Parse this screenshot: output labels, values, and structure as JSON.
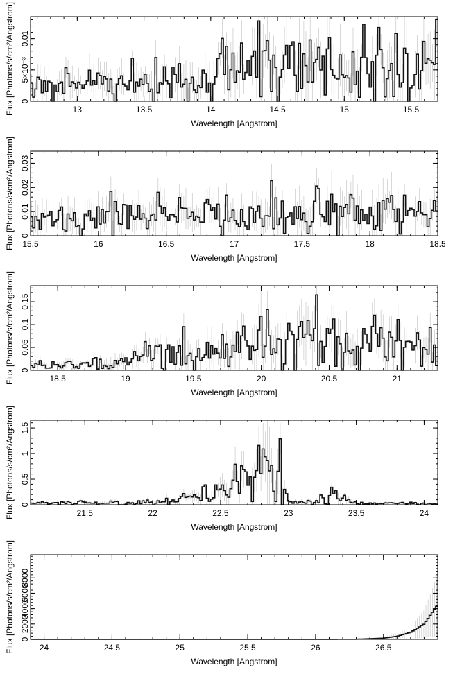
{
  "figure": {
    "colors": {
      "line": "#111111",
      "error_bars": "#bdbdbd",
      "axes": "#000000",
      "background": "#ffffff"
    }
  },
  "chart_data": [
    {
      "type": "line",
      "style": "step histogram with vertical error bars",
      "xlabel": "Wavelength [Angstrom]",
      "ylabel": "Flux [Photons/s/cm²/Angstrom]",
      "xlim": [
        12.65,
        15.7
      ],
      "ylim": [
        0,
        0.0135
      ],
      "x_ticks": [
        13,
        13.5,
        14,
        14.5,
        15,
        15.5
      ],
      "x_tick_labels": [
        "13",
        "13.5",
        "14",
        "14.5",
        "15",
        "15.5"
      ],
      "y_ticks": [
        0,
        0.005,
        0.01
      ],
      "y_tick_labels": [
        "0",
        "5×10⁻³",
        "0.01"
      ],
      "grid": false,
      "series": [
        {
          "x": [
            12.7,
            12.9,
            13.1,
            13.3,
            13.5,
            13.7,
            13.9,
            14.1,
            14.3,
            14.5,
            14.7,
            14.9,
            15.1,
            15.3,
            15.5,
            15.7
          ],
          "y": [
            0.0025,
            0.0026,
            0.0028,
            0.003,
            0.0032,
            0.0034,
            0.0036,
            0.0045,
            0.0052,
            0.0055,
            0.0062,
            0.0058,
            0.005,
            0.0045,
            0.006,
            0.0065
          ]
        }
      ]
    },
    {
      "type": "line",
      "style": "step histogram with vertical error bars",
      "xlabel": "Wavelength [Angstrom]",
      "ylabel": "Flux [Photons/s/cm²/Angstrom]",
      "xlim": [
        15.5,
        18.5
      ],
      "ylim": [
        0,
        0.035
      ],
      "x_ticks": [
        15.5,
        16,
        16.5,
        17,
        17.5,
        18,
        18.5
      ],
      "x_tick_labels": [
        "15.5",
        "16",
        "16.5",
        "17",
        "17.5",
        "18",
        "18.5"
      ],
      "y_ticks": [
        0,
        0.01,
        0.02,
        0.03
      ],
      "y_tick_labels": [
        "0",
        "0.01",
        "0.02",
        "0.03"
      ],
      "grid": false,
      "series": [
        {
          "x": [
            15.5,
            15.75,
            16.0,
            16.25,
            16.5,
            16.75,
            17.0,
            17.25,
            17.5,
            17.75,
            18.0,
            18.25,
            18.5
          ],
          "y": [
            0.007,
            0.008,
            0.0075,
            0.007,
            0.0085,
            0.009,
            0.008,
            0.0085,
            0.0095,
            0.011,
            0.012,
            0.01,
            0.009
          ]
        }
      ]
    },
    {
      "type": "line",
      "style": "step histogram with vertical error bars",
      "xlabel": "Wavelength [Angstrom]",
      "ylabel": "Flux [Photons/s/cm²/Angstrom]",
      "xlim": [
        18.3,
        21.3
      ],
      "ylim": [
        0,
        0.185
      ],
      "x_ticks": [
        18.5,
        19,
        19.5,
        20,
        20.5,
        21
      ],
      "x_tick_labels": [
        "18.5",
        "19",
        "19.5",
        "20",
        "20.5",
        "21"
      ],
      "y_ticks": [
        0,
        0.05,
        0.1,
        0.15
      ],
      "y_tick_labels": [
        "0",
        "0.05",
        "0.1",
        "0.15"
      ],
      "grid": false,
      "series": [
        {
          "x": [
            18.3,
            18.55,
            18.8,
            19.05,
            19.3,
            19.55,
            19.8,
            20.05,
            20.3,
            20.55,
            20.8,
            21.05,
            21.3
          ],
          "y": [
            0.01,
            0.011,
            0.015,
            0.025,
            0.03,
            0.04,
            0.05,
            0.07,
            0.075,
            0.06,
            0.065,
            0.045,
            0.04
          ]
        }
      ]
    },
    {
      "type": "line",
      "style": "step histogram with vertical error bars",
      "xlabel": "Wavelength [Angstrom]",
      "ylabel": "Flux [Photons/s/cm²/Angstrom]",
      "xlim": [
        21.1,
        24.1
      ],
      "ylim": [
        0,
        1.65
      ],
      "x_ticks": [
        21.5,
        22,
        22.5,
        23,
        23.5,
        24
      ],
      "x_tick_labels": [
        "21.5",
        "22",
        "22.5",
        "23",
        "23.5",
        "24"
      ],
      "y_ticks": [
        0,
        0.5,
        1,
        1.5
      ],
      "y_tick_labels": [
        "0",
        "0.5",
        "1",
        "1.5"
      ],
      "grid": false,
      "series": [
        {
          "x": [
            21.1,
            21.5,
            22.0,
            22.2,
            22.4,
            22.55,
            22.65,
            22.75,
            22.85,
            22.92,
            23.0,
            23.2,
            23.35,
            23.5,
            24.1
          ],
          "y": [
            0.03,
            0.04,
            0.05,
            0.1,
            0.15,
            0.3,
            0.5,
            0.7,
            0.9,
            0.6,
            0.05,
            0.05,
            0.15,
            0.03,
            0.03
          ]
        }
      ]
    },
    {
      "type": "line",
      "style": "step histogram with vertical error bars",
      "xlabel": "Wavelength [Angstrom]",
      "ylabel": "Flux [Photons/s/cm²/Angstrom]",
      "xlim": [
        23.9,
        26.9
      ],
      "ylim": [
        0,
        11000
      ],
      "x_ticks": [
        24,
        24.5,
        25,
        25.5,
        26,
        26.5
      ],
      "x_tick_labels": [
        "24",
        "24.5",
        "25",
        "25.5",
        "26",
        "26.5"
      ],
      "y_ticks": [
        0,
        2000,
        4000,
        6000,
        8000
      ],
      "y_tick_labels": [
        "0",
        "2000",
        "4000",
        "6000",
        "8000"
      ],
      "grid": false,
      "series": [
        {
          "x": [
            23.9,
            26.0,
            26.3,
            26.5,
            26.6,
            26.7,
            26.8,
            26.9
          ],
          "y": [
            0,
            0,
            20,
            150,
            400,
            900,
            2000,
            4500
          ]
        }
      ]
    }
  ]
}
